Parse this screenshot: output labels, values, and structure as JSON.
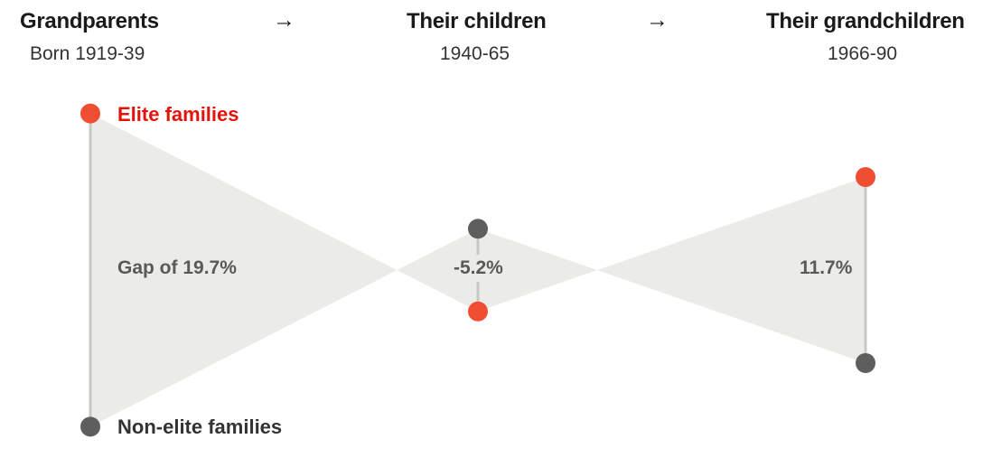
{
  "header": {
    "generations": [
      {
        "title": "Grandparents",
        "years": "Born 1919-39"
      },
      {
        "title": "Their children",
        "years": "1940-65"
      },
      {
        "title": "Their grandchildren",
        "years": "1966-90"
      }
    ],
    "arrow": "→"
  },
  "chart_data": {
    "type": "dumbbell",
    "categories": [
      "Grandparents",
      "Their children",
      "Their grandchildren"
    ],
    "series": [
      {
        "name": "Elite families",
        "color": "#f04e33"
      },
      {
        "name": "Non-elite families",
        "color": "#5e5e5e"
      }
    ],
    "gaps": [
      19.7,
      -5.2,
      11.7
    ],
    "gap_labels": [
      "Gap of 19.7%",
      "-5.2%",
      "11.7%"
    ],
    "colors": {
      "elite": "#f04e33",
      "non_elite": "#5e5e5e",
      "band": "#ebebe7",
      "stem": "#c8c8c4",
      "elite_label": "#e3120b"
    }
  }
}
